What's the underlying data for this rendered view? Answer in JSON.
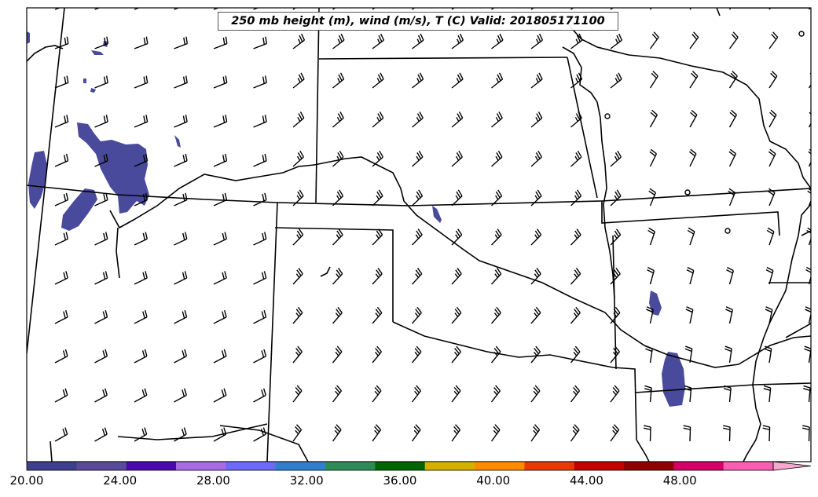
{
  "title": "250 mb height (m), wind (m/s), T (C) Valid: 201805171100",
  "colorbar": {
    "tick_labels": [
      "20.00",
      "24.00",
      "28.00",
      "32.00",
      "36.00",
      "40.00",
      "44.00",
      "48.00"
    ],
    "tick_values": [
      20,
      24,
      28,
      32,
      36,
      40,
      44,
      48
    ],
    "min": 20,
    "max": 52,
    "extend": "max",
    "colors": [
      "#3f3f8f",
      "#5a4a9a",
      "#4b0aa8",
      "#a96be0",
      "#6b6bf5",
      "#2f7fcc",
      "#2e8b57",
      "#006400",
      "#d4b000",
      "#ff8c00",
      "#e63b00",
      "#c00000",
      "#8b0000",
      "#d4006a",
      "#f560b0"
    ],
    "extend_color": "#f7a8cf"
  },
  "chart_data": {
    "type": "map",
    "field": "250 mb height (m), wind (m/s), T (C)",
    "valid_time": "201805171100",
    "shaded_range_min": 20,
    "shaded_color": "#4a4a9c",
    "wind_barbs": "grid of wind barbs over domain, predominantly southwesterly to westerly flow"
  }
}
